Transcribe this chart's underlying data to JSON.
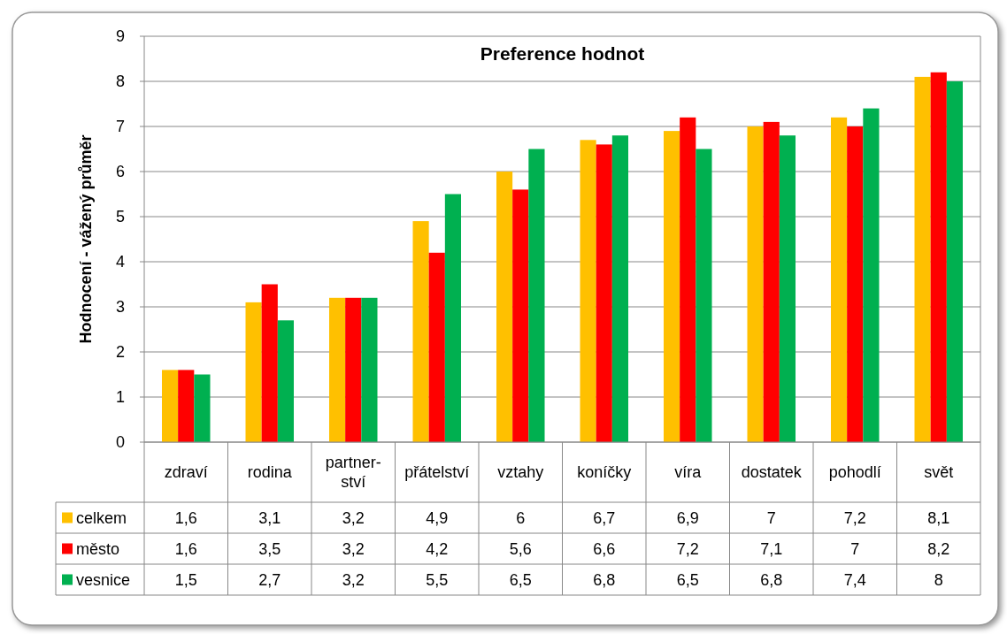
{
  "chart_data": {
    "type": "bar",
    "title": "Preference hodnot",
    "ylabel": "Hodnocení - vážený průměr",
    "categories": [
      "zdraví",
      "rodina",
      "partner-ství",
      "přátelství",
      "vztahy",
      "koníčky",
      "víra",
      "dostatek",
      "pohodlí",
      "svět"
    ],
    "series": [
      {
        "name": "celkem",
        "color": "#ffc000",
        "values": [
          1.6,
          3.1,
          3.2,
          4.9,
          6,
          6.7,
          6.9,
          7,
          7.2,
          8.1
        ],
        "value_labels": [
          "1,6",
          "3,1",
          "3,2",
          "4,9",
          "6",
          "6,7",
          "6,9",
          "7",
          "7,2",
          "8,1"
        ]
      },
      {
        "name": "město",
        "color": "#ff0000",
        "values": [
          1.6,
          3.5,
          3.2,
          4.2,
          5.6,
          6.6,
          7.2,
          7.1,
          7,
          8.2
        ],
        "value_labels": [
          "1,6",
          "3,5",
          "3,2",
          "4,2",
          "5,6",
          "6,6",
          "7,2",
          "7,1",
          "7",
          "8,2"
        ]
      },
      {
        "name": "vesnice",
        "color": "#00b050",
        "values": [
          1.5,
          2.7,
          3.2,
          5.5,
          6.5,
          6.8,
          6.5,
          6.8,
          7.4,
          8
        ],
        "value_labels": [
          "1,5",
          "2,7",
          "3,2",
          "5,5",
          "6,5",
          "6,8",
          "6,5",
          "6,8",
          "7,4",
          "8"
        ]
      }
    ],
    "ylim": [
      0,
      9
    ],
    "yticks": [
      0,
      1,
      2,
      3,
      4,
      5,
      6,
      7,
      8,
      9
    ],
    "grid": "y",
    "legend": "bottom"
  }
}
